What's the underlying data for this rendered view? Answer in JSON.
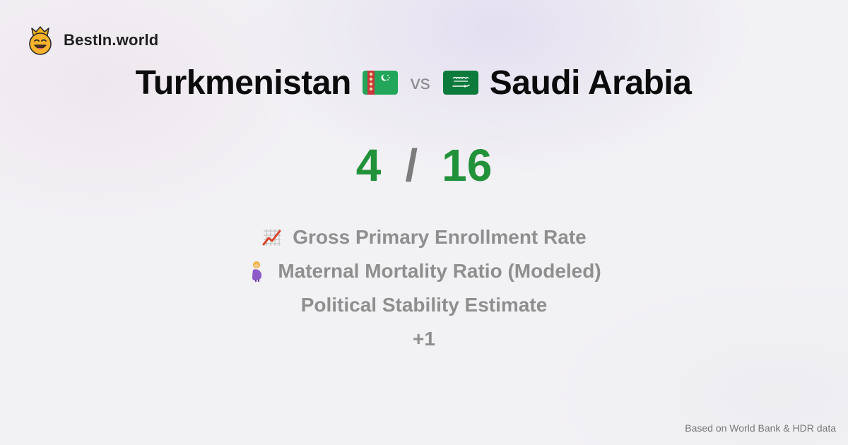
{
  "brand": {
    "name": "BestIn.world",
    "icon": "crown-smiley-icon"
  },
  "comparison": {
    "country_a": "Turkmenistan",
    "flag_a_icon": "turkmenistan-flag-icon",
    "vs_label": "vs",
    "country_b": "Saudi Arabia",
    "flag_b_icon": "saudi-arabia-flag-icon"
  },
  "score": {
    "a": "4",
    "separator": "/",
    "b": "16"
  },
  "metrics": [
    {
      "label": "Gross Primary Enrollment Rate",
      "icon": "chart-increasing-icon"
    },
    {
      "label": "Maternal Mortality Ratio (Modeled)",
      "icon": "pregnant-woman-icon"
    },
    {
      "label": "Political Stability Estimate",
      "icon": ""
    }
  ],
  "more_label": "+1",
  "footer": "Based on World Bank & HDR data",
  "colors": {
    "score_green": "#21923a",
    "muted_gray": "#8f8f8f",
    "title_black": "#0b0b0b"
  }
}
